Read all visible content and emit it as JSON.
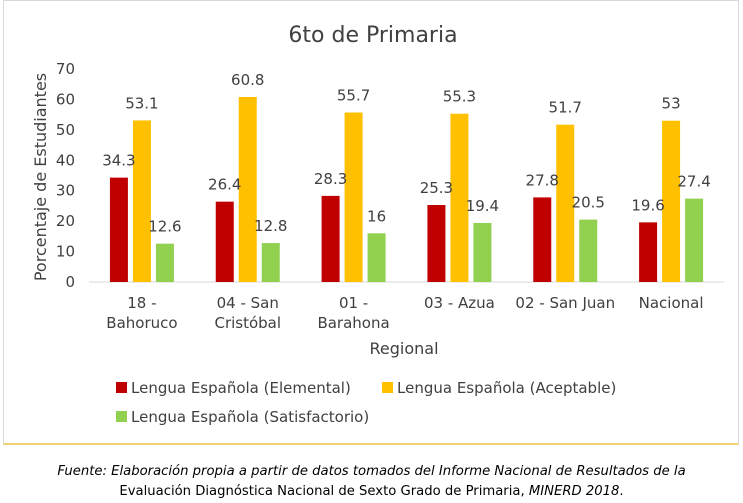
{
  "chart_data": {
    "type": "bar",
    "title": "6to de Primaria",
    "xlabel": "Regional",
    "ylabel": "Porcentaje de Estudiantes",
    "ylim": [
      0,
      70
    ],
    "yticks": [
      0,
      10,
      20,
      30,
      40,
      50,
      60,
      70
    ],
    "categories": [
      [
        "18 -",
        "Bahoruco"
      ],
      [
        "04 - San",
        "Cristóbal"
      ],
      [
        "01 -",
        "Barahona"
      ],
      [
        "03 - Azua"
      ],
      [
        "02 - San Juan"
      ],
      [
        "Nacional"
      ]
    ],
    "series": [
      {
        "name": "Lengua Española (Elemental)",
        "color": "#c00000",
        "values": [
          34.3,
          26.4,
          28.3,
          25.3,
          27.8,
          19.6
        ]
      },
      {
        "name": "Lengua Española (Aceptable)",
        "color": "#ffc000",
        "values": [
          53.1,
          60.8,
          55.7,
          55.3,
          51.7,
          53
        ]
      },
      {
        "name": "Lengua Española (Satisfactorio)",
        "color": "#92d050",
        "values": [
          12.6,
          12.8,
          16,
          19.4,
          20.5,
          27.4
        ]
      }
    ],
    "grid": false,
    "legend_position": "bottom"
  },
  "source": {
    "line1": "Fuente: Elaboración propia a partir de datos tomados del Informe Nacional de Resultados de la",
    "line2_prefix": "Evaluación Diagnóstica Nacional de Sexto Grado de Primaria, ",
    "line2_italic": "MINERD 2018",
    "line2_suffix": "."
  }
}
